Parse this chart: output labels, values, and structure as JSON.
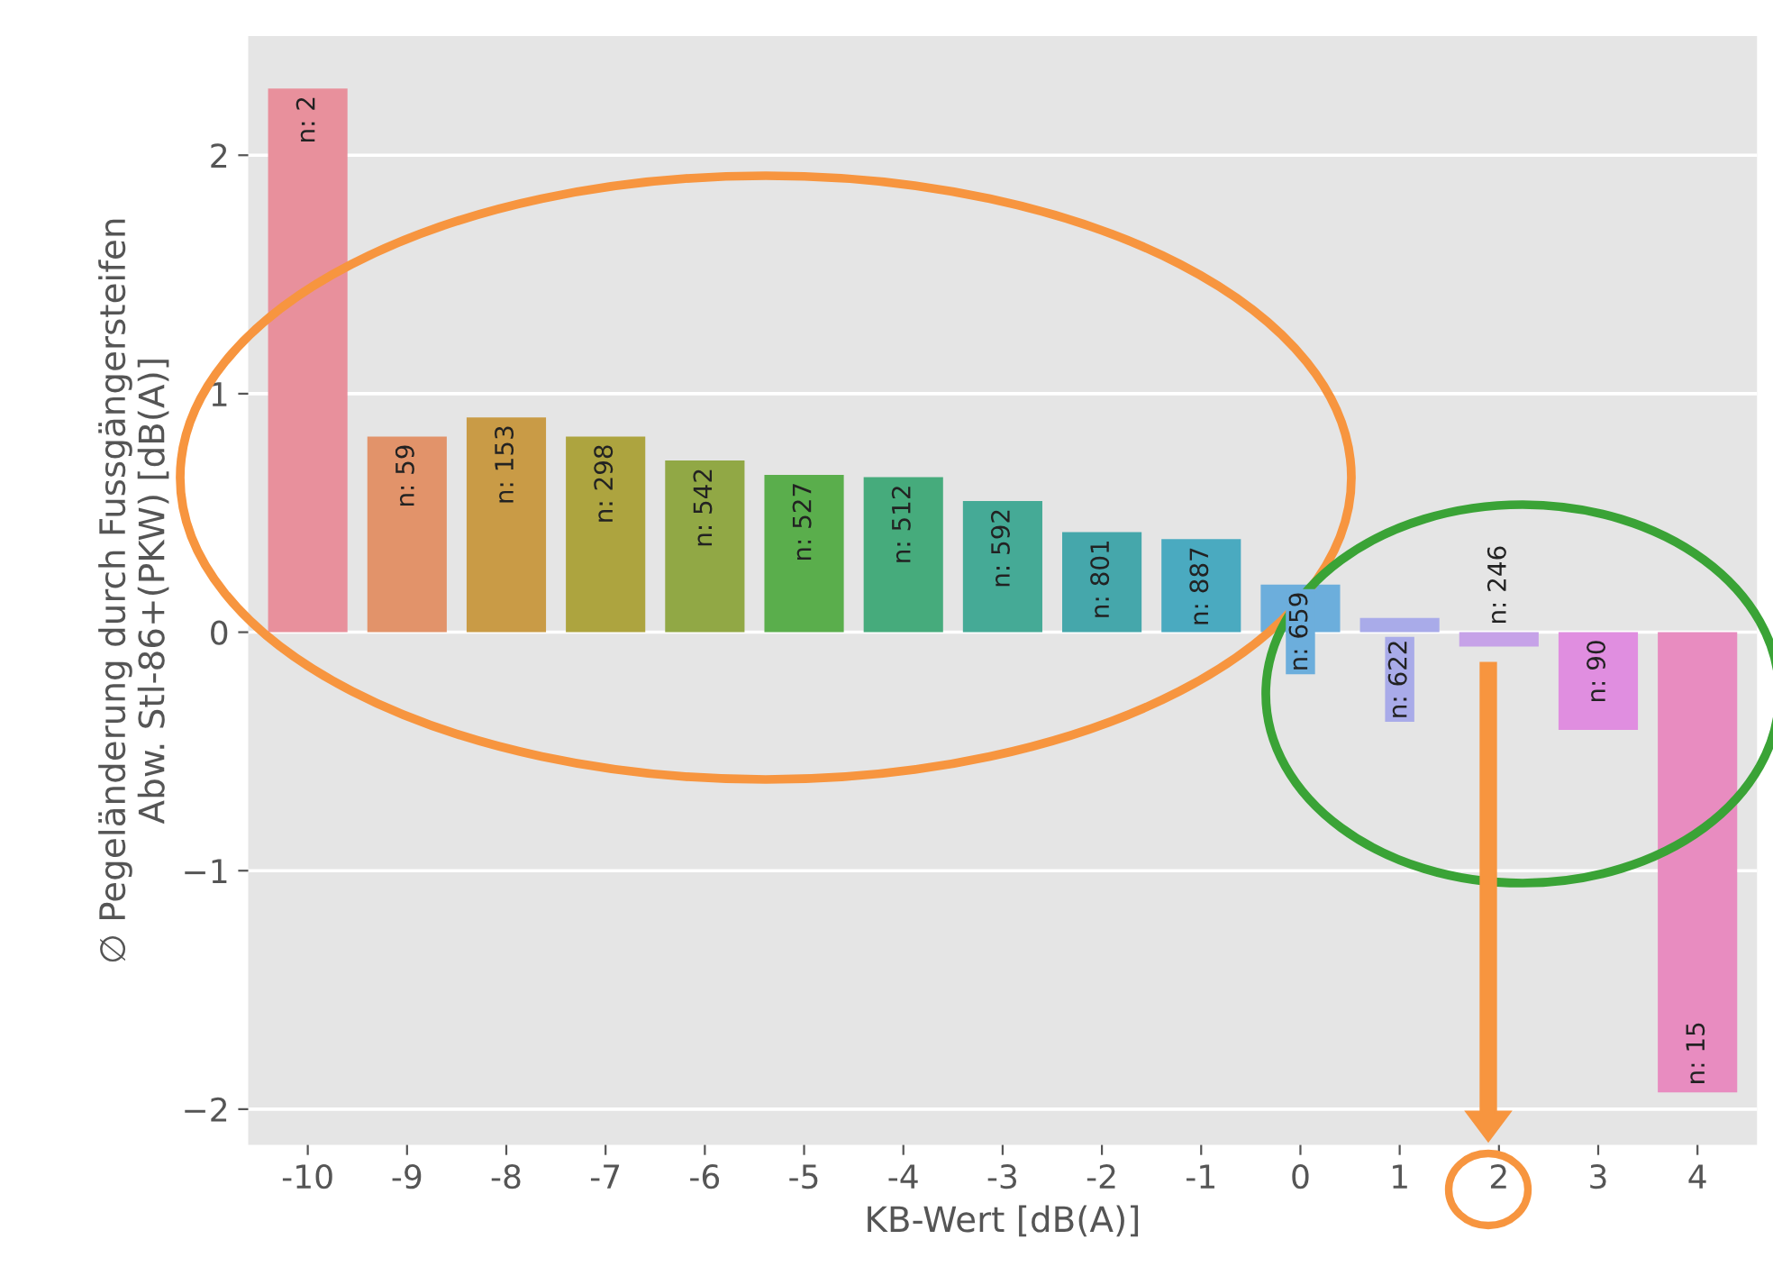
{
  "chart_data": {
    "type": "bar",
    "xlabel": "KB-Wert [dB(A)]",
    "ylabel": "∅ Pegeländerung durch Fussgängersteifen\nAbw. Stl-86+(PKW) [dB(A)]",
    "categories": [
      "-10",
      "-9",
      "-8",
      "-7",
      "-6",
      "-5",
      "-4",
      "-3",
      "-2",
      "-1",
      "0",
      "1",
      "2",
      "3",
      "4"
    ],
    "values": [
      2.28,
      0.82,
      0.9,
      0.82,
      0.72,
      0.66,
      0.65,
      0.55,
      0.42,
      0.39,
      0.2,
      0.06,
      -0.06,
      -0.41,
      -1.93
    ],
    "annotations": [
      {
        "text": "n: 2",
        "x": "-10",
        "y": 2.28
      },
      {
        "text": "n: 59",
        "x": "-9",
        "y": 0.82
      },
      {
        "text": "n: 153",
        "x": "-8",
        "y": 0.9
      },
      {
        "text": "n: 298",
        "x": "-7",
        "y": 0.82
      },
      {
        "text": "n: 542",
        "x": "-6",
        "y": 0.72
      },
      {
        "text": "n: 527",
        "x": "-5",
        "y": 0.66
      },
      {
        "text": "n: 512",
        "x": "-4",
        "y": 0.65
      },
      {
        "text": "n: 592",
        "x": "-3",
        "y": 0.55
      },
      {
        "text": "n: 801",
        "x": "-2",
        "y": 0.42
      },
      {
        "text": "n: 887",
        "x": "-1",
        "y": 0.39
      },
      {
        "text": "n: 659",
        "x": "0",
        "y": 0.2
      },
      {
        "text": "n: 622",
        "x": "1",
        "y": 0.06
      },
      {
        "text": "n: 246",
        "x": "2",
        "y": -0.06
      },
      {
        "text": "n: 90",
        "x": "3",
        "y": -0.41
      },
      {
        "text": "n: 15",
        "x": "4",
        "y": -1.93
      }
    ],
    "colors": [
      "#e8909c",
      "#e2936a",
      "#c99b46",
      "#ada43f",
      "#91a845",
      "#5aae4c",
      "#46ab7c",
      "#45aa96",
      "#45a7ab",
      "#4aaac0",
      "#6caedc",
      "#a9abe9",
      "#c6a2e8",
      "#e08ee0",
      "#e88cc0"
    ],
    "ylim": [
      -2.15,
      2.5
    ],
    "yticks": [
      {
        "value": -2,
        "label": "−2"
      },
      {
        "value": -1,
        "label": "−1"
      },
      0,
      1,
      2
    ],
    "grid": "y"
  }
}
